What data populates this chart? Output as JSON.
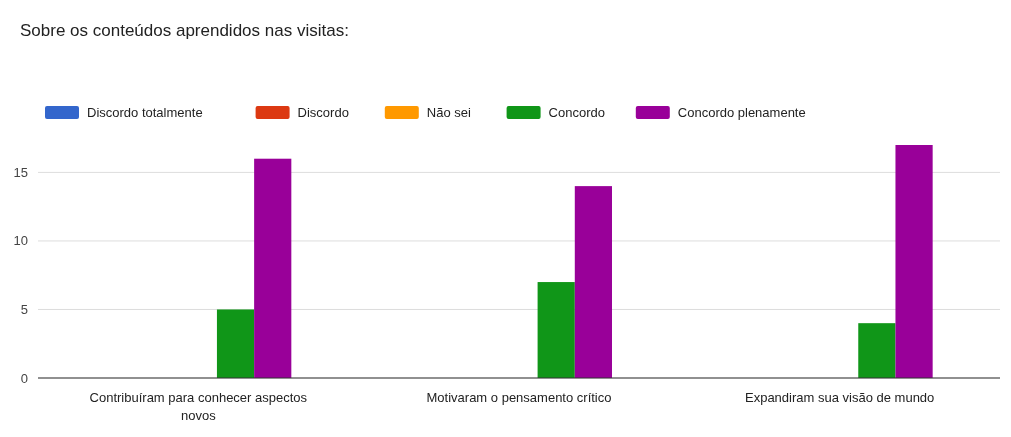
{
  "chart_data": {
    "type": "bar",
    "title": "Sobre os conteúdos aprendidos nas visitas:",
    "categories": [
      "Contribuíram para conhecer aspectos novos",
      "Motivaram o pensamento crítico",
      "Expandiram sua visão de mundo"
    ],
    "series": [
      {
        "name": "Discordo totalmente",
        "color": "#3366cc",
        "values": [
          0,
          0,
          0
        ]
      },
      {
        "name": "Discordo",
        "color": "#dc3912",
        "values": [
          0,
          0,
          0
        ]
      },
      {
        "name": "Não sei",
        "color": "#ff9900",
        "values": [
          0,
          0,
          0
        ]
      },
      {
        "name": "Concordo",
        "color": "#109618",
        "values": [
          5,
          7,
          4
        ]
      },
      {
        "name": "Concordo plenamente",
        "color": "#990099",
        "values": [
          16,
          14,
          17
        ]
      }
    ],
    "ylim": [
      0,
      17
    ],
    "yticks": [
      0,
      5,
      10,
      15
    ],
    "grid": "y",
    "legend": "top left"
  }
}
